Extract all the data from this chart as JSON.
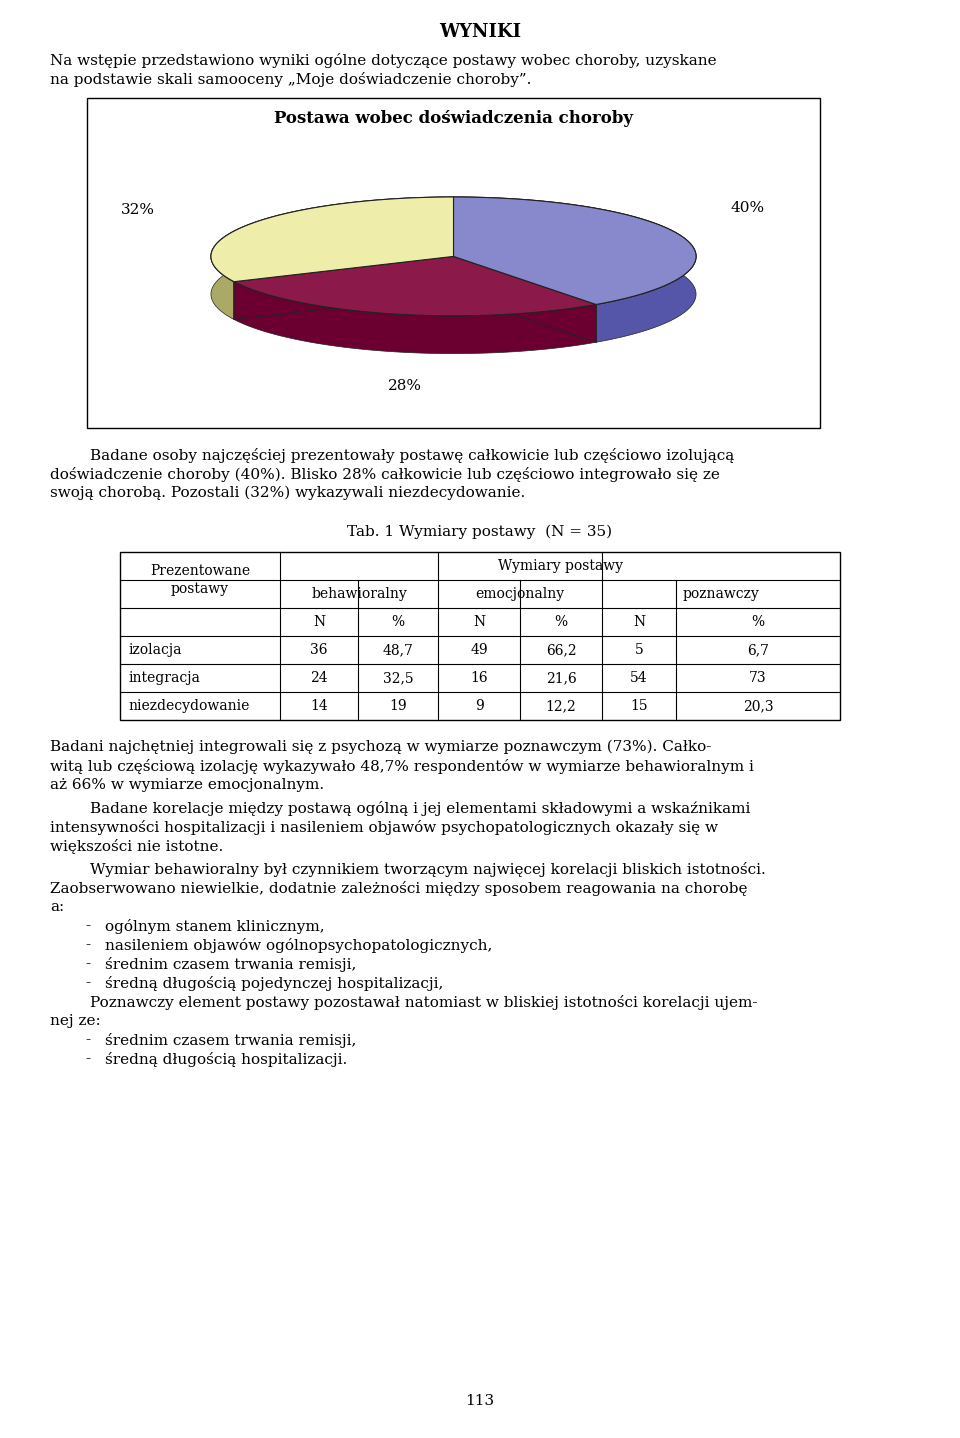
{
  "title": "WYNIKI",
  "intro_line1": "Na wstępie przedstawiono wyniki ogólne dotyczące postawy wobec choroby, uzyskane",
  "intro_line2": "na podstawie skali samooceny „Moje doświadczenie choroby”.",
  "chart_title": "Postawa wobec doświadczenia choroby",
  "pie_values": [
    40,
    28,
    32
  ],
  "pie_labels": [
    "40%",
    "28%",
    "32%"
  ],
  "pie_colors_top": [
    "#8888cc",
    "#8b1a4a",
    "#eeeeaa"
  ],
  "pie_colors_side": [
    "#5555aa",
    "#6b0030",
    "#aaaa66"
  ],
  "pie_colors_left_wall": [
    "#6666bb",
    "#7a1040",
    "#cccc88"
  ],
  "text_para1_lines": [
    "\tBadane osoby najczęściej prezentowały postawę całkowicie lub częściowo izolującą",
    "doświadczenie choroby (40%). Blisko 28% całkowicie lub częściowo integrowało się ze",
    "swoją chorobą. Pozostali (32%) wykazywali niezdecydowanie."
  ],
  "tab_title": "Tab. 1 Wymiary postawy  (N = 35)",
  "rows": [
    [
      "izolacja",
      "36",
      "48,7",
      "49",
      "66,2",
      "5",
      "6,7"
    ],
    [
      "integracja",
      "24",
      "32,5",
      "16",
      "21,6",
      "54",
      "73"
    ],
    [
      "niezdecydowanie",
      "14",
      "19",
      "9",
      "12,2",
      "15",
      "20,3"
    ]
  ],
  "para2_lines": [
    "Badani najchętniej integrowali się z psychozą w wymiarze poznawczym (73%). Całko-",
    "witą lub częściową izolację wykazywało 48,7% respondentów w wymiarze behawioralnym i",
    "aż 66% w wymiarze emocjonalnym."
  ],
  "para3_lines": [
    "\tBadane korelacje między postawą ogólną i jej elementami składowymi a wskaźnikami",
    "intensywności hospitalizacji i nasileniem objawów psychopatologicznych okazały się w",
    "większości nie istotne."
  ],
  "para4_lines": [
    "\tWymiar behawioralny był czynnikiem tworzącym najwięcej korelacji bliskich istotności.",
    "Zaobserwowano niewielkie, dodatnie zależności między sposobem reagowania na chorobę",
    "a:"
  ],
  "bullets1": [
    "ogólnym stanem klinicznym,",
    "nasileniem objawów ogólnopsychopatologicznych,",
    "średnim czasem trwania remisji,",
    "średną długością pojedynczej hospitalizacji,"
  ],
  "para5_lines": [
    "\tPoznawczy element postawy pozostawał natomiast w bliskiej istotności korelacji ujem-",
    "nej ze:"
  ],
  "bullets2": [
    "średnim czasem trwania remisji,",
    "średną długością hospitalizacji."
  ],
  "page_number": "113"
}
